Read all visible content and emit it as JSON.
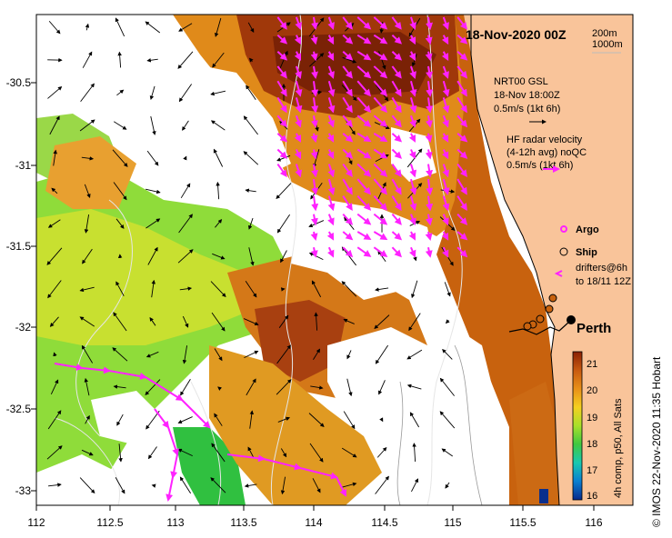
{
  "map": {
    "title": "18-Nov-2020 00Z",
    "depth_labels": [
      "200m",
      "1000m"
    ],
    "city_label": "Perth",
    "credit": "© IMOS 22-Nov-2020 11:35 Hobart",
    "lon_ticks": [
      "112",
      "112.5",
      "113",
      "113.5",
      "114",
      "114.5",
      "115",
      "115.5",
      "116"
    ],
    "lat_ticks": [
      "-30.5",
      "-31",
      "-31.5",
      "-32",
      "-32.5",
      "-33"
    ],
    "colors": {
      "land": "#f9c49a",
      "arrow_model": "#000000",
      "arrow_radar": "#ff22ff",
      "sst_warm": "#a0380a",
      "sst_mid": "#e08a1a",
      "sst_cool": "#7fd93a"
    }
  },
  "legend": {
    "model_lines": [
      "NRT00 GSL",
      "18-Nov 18:00Z",
      "0.5m/s (1kt 6h)"
    ],
    "radar_lines": [
      "HF radar velocity",
      "(4-12h avg) noQC",
      "0.5m/s (1kt 6h)"
    ],
    "argo_label": "Argo",
    "ship_label": "Ship",
    "drifters_lines": [
      "drifters@6h",
      "to 18/11 12Z"
    ]
  },
  "colorbar": {
    "ticks": [
      "21",
      "20",
      "19",
      "18",
      "17",
      "16"
    ],
    "label": "4h comp, p50, All Sats",
    "range": [
      16,
      21
    ],
    "stops": [
      "#082a8c",
      "#0a7fd0",
      "#18c8b0",
      "#40c840",
      "#a8e02a",
      "#f4d020",
      "#e89018",
      "#c85a10",
      "#8a2004"
    ]
  }
}
